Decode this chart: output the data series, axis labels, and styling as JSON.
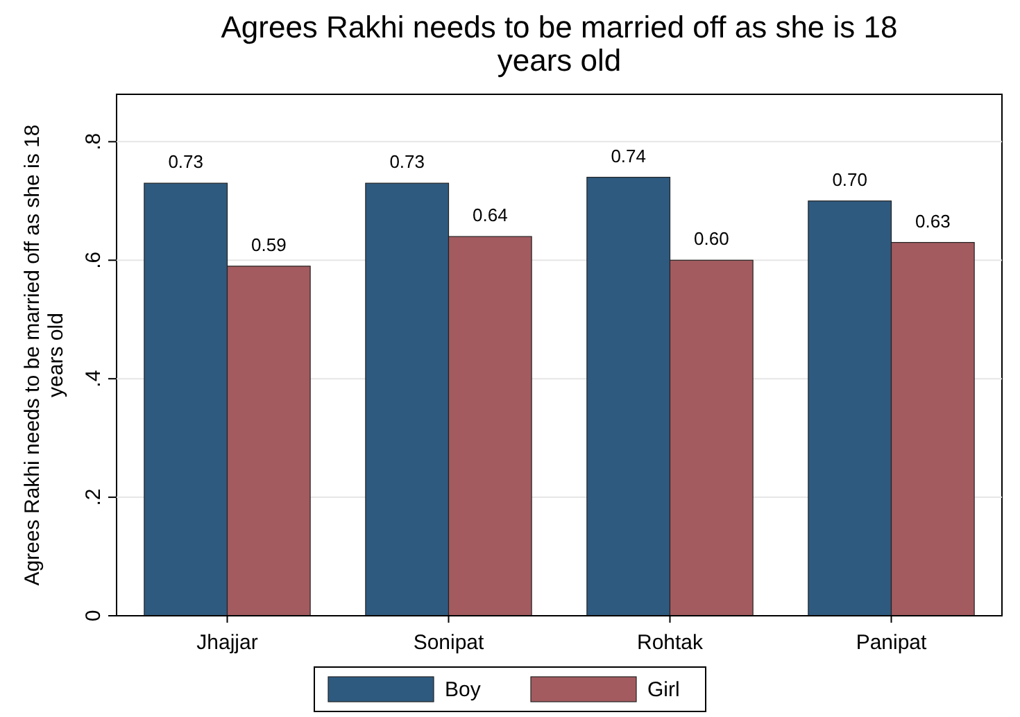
{
  "chart_data": {
    "type": "bar",
    "title": "Agrees Rakhi needs to be married off as she is 18 years old",
    "ylabel": "Agrees Rakhi needs to be married off as she is 18 years old",
    "categories": [
      "Jhajjar",
      "Sonipat",
      "Rohtak",
      "Panipat"
    ],
    "series": [
      {
        "name": "Boy",
        "color": "#2f5a80",
        "values": [
          0.73,
          0.73,
          0.74,
          0.7
        ],
        "value_labels": [
          "0.73",
          "0.73",
          "0.74",
          "0.70"
        ]
      },
      {
        "name": "Girl",
        "color": "#a35b5f",
        "values": [
          0.59,
          0.64,
          0.6,
          0.63
        ],
        "value_labels": [
          "0.59",
          "0.64",
          "0.60",
          "0.63"
        ]
      }
    ],
    "ylim": [
      0,
      0.88
    ],
    "yticks": [
      {
        "value": 0,
        "label": "0"
      },
      {
        "value": 0.2,
        "label": ".2"
      },
      {
        "value": 0.4,
        "label": ".4"
      },
      {
        "value": 0.6,
        "label": ".6"
      },
      {
        "value": 0.8,
        "label": ".8"
      }
    ],
    "grid": "y",
    "legend": "bottom"
  }
}
